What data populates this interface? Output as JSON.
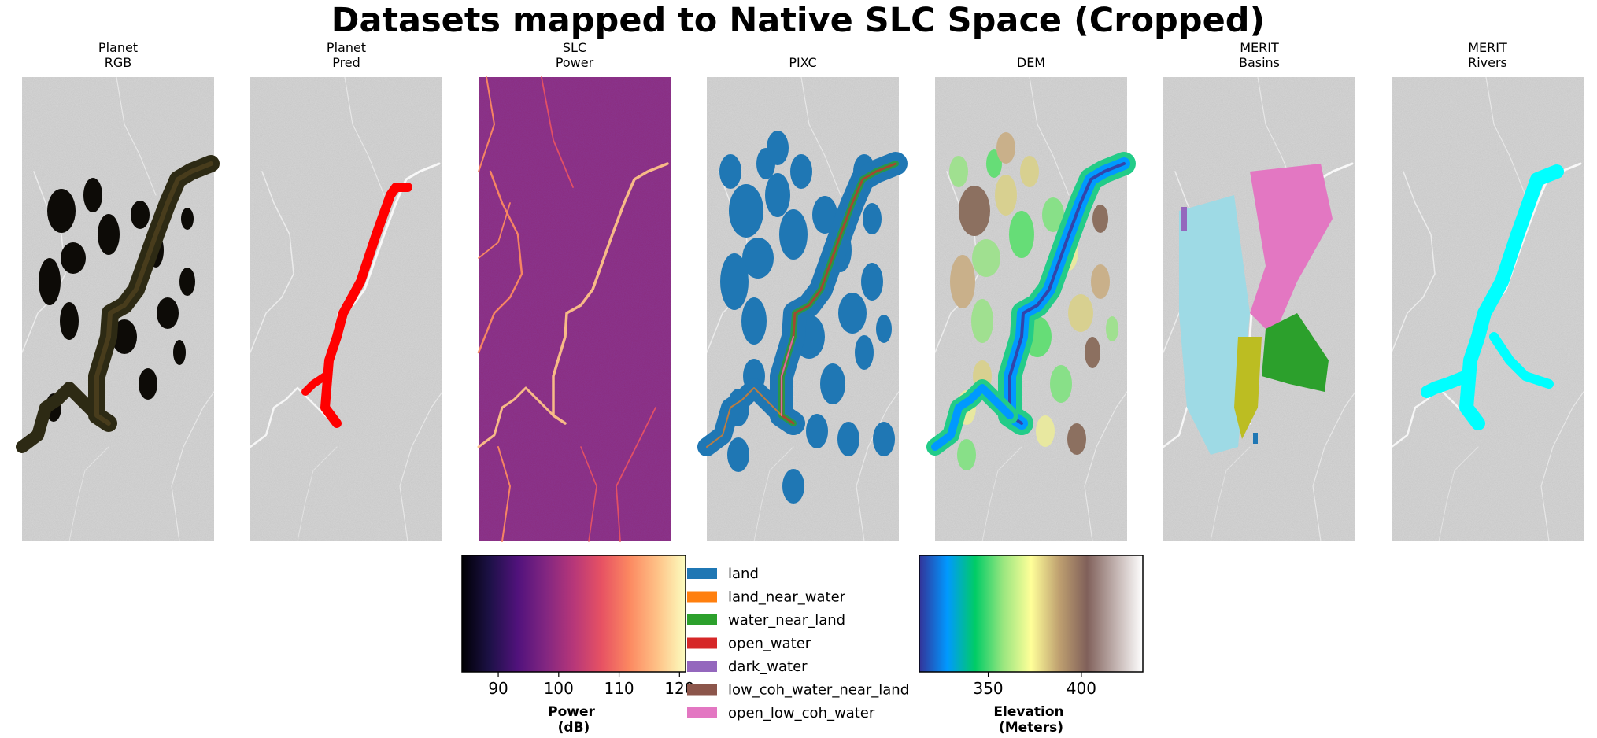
{
  "chart_data": {
    "type": "image-panels",
    "title": "Datasets mapped to Native SLC Space (Cropped)",
    "panels": [
      {
        "line1": "Planet",
        "line2": "RGB",
        "overlay": "rgb"
      },
      {
        "line1": "Planet",
        "line2": "Pred",
        "overlay": "pred"
      },
      {
        "line1": "SLC",
        "line2": "Power",
        "overlay": "slc"
      },
      {
        "line1": "",
        "line2": "PIXC",
        "overlay": "pixc"
      },
      {
        "line1": "",
        "line2": "DEM",
        "overlay": "dem"
      },
      {
        "line1": "MERIT",
        "line2": "Basins",
        "overlay": "basins"
      },
      {
        "line1": "MERIT",
        "line2": "Rivers",
        "overlay": "rivers"
      }
    ],
    "colorbars": [
      {
        "label_line1": "Power",
        "label_line2": "(dB)",
        "range": [
          84,
          121
        ],
        "ticks": [
          90,
          100,
          110,
          120
        ],
        "colormap": "magma",
        "stops": [
          "#000004",
          "#1d1147",
          "#51127c",
          "#822681",
          "#b73779",
          "#e75263",
          "#fc8961",
          "#fec287",
          "#fcfdbf"
        ]
      },
      {
        "label_line1": "Elevation",
        "label_line2": "(Meters)",
        "range": [
          313,
          433
        ],
        "ticks": [
          350,
          400
        ],
        "colormap": "terrain",
        "stops": [
          "#333399",
          "#0099ff",
          "#00cc66",
          "#99e67f",
          "#ffff99",
          "#bfa070",
          "#80605a",
          "#c0b0ad",
          "#ffffff"
        ]
      }
    ],
    "legend": {
      "placement": "bottom-center",
      "entries": [
        {
          "label": "land",
          "color": "#1f77b4"
        },
        {
          "label": "land_near_water",
          "color": "#ff7f0e"
        },
        {
          "label": "water_near_land",
          "color": "#2ca02c"
        },
        {
          "label": "open_water",
          "color": "#d62728"
        },
        {
          "label": "dark_water",
          "color": "#9467bd"
        },
        {
          "label": "low_coh_water_near_land",
          "color": "#8c564b"
        },
        {
          "label": "open_low_coh_water",
          "color": "#e377c2"
        }
      ]
    },
    "overlay_colors": {
      "pred": "#ff0000",
      "rivers": "#00ffff",
      "basin_colors": [
        "#9edae5",
        "#e377c2",
        "#bcbd22",
        "#2ca02c",
        "#9467bd",
        "#1f77b4"
      ]
    }
  }
}
